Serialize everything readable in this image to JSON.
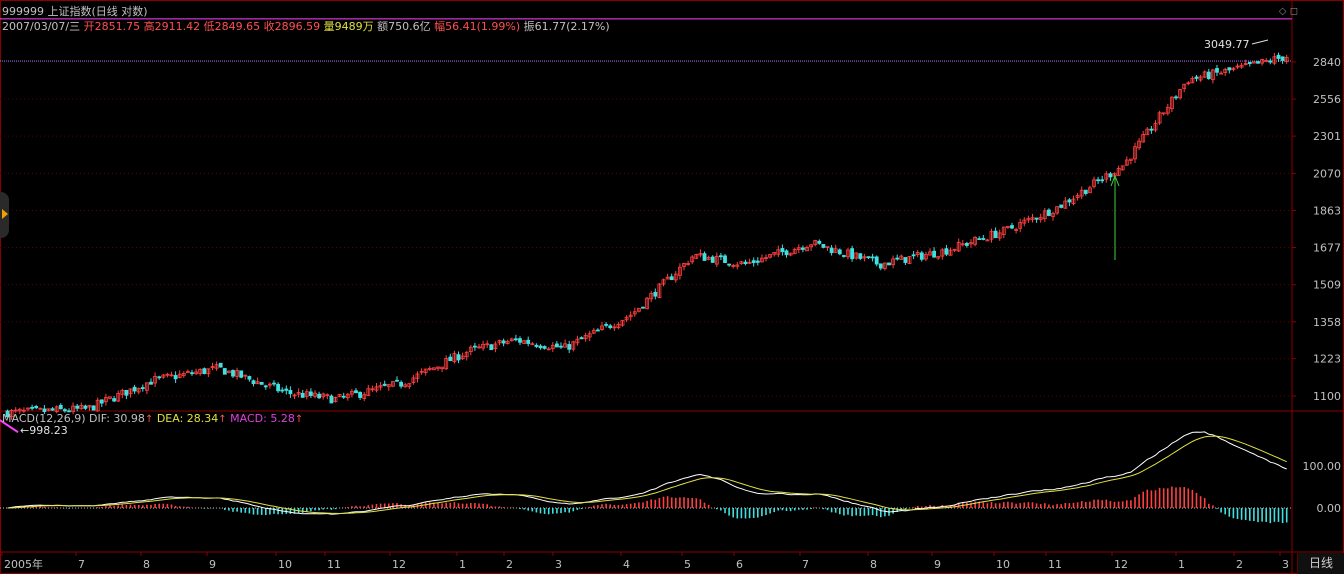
{
  "header": {
    "code": "999999",
    "name": "上证指数(日线 对数)",
    "date": "2007/03/07/三",
    "open_label": "开",
    "open": "2851.75",
    "high_label": "高",
    "high": "2911.42",
    "low_label": "低",
    "low": "2849.65",
    "close_label": "收",
    "close": "2896.59",
    "volume_label": "量",
    "volume": "9489万",
    "amount_label": "额",
    "amount": "750.6亿",
    "change_label": "幅",
    "change": "56.41(1.99%)",
    "amplitude_label": "振",
    "amplitude": "61.77(2.17%)"
  },
  "macd_header": {
    "name": "MACD(12,26,9)",
    "dif": "DIF: 30.98",
    "dea": "DEA: 28.34",
    "macd": "MACD: 5.28",
    "arrow": "↑"
  },
  "period_button": "日线",
  "colors": {
    "background": "#000000",
    "up": "#ff4040",
    "down": "#40e0e0",
    "dif": "#ffffff",
    "dea": "#e0e040",
    "macd_up": "#ff4040",
    "macd_down": "#40e0e0",
    "grid": "#8a0000",
    "price_line": "#ff40ff",
    "annotation_arrow": "#40d040"
  },
  "chart_data": [
    {
      "type": "candlestick",
      "scale": "log",
      "y_ticks": [
        2840,
        2556,
        2301,
        2070,
        1863,
        1677,
        1509,
        1358,
        1223,
        1100
      ],
      "x_ticks": [
        "2005年",
        "7",
        "8",
        "9",
        "10",
        "11",
        "12",
        "1",
        "2",
        "3",
        "4",
        "5",
        "6",
        "7",
        "8",
        "9",
        "10",
        "11",
        "12",
        "1",
        "2",
        "3"
      ],
      "annotations": [
        {
          "text": "←998.23",
          "label": "low",
          "value": 998.23
        },
        {
          "text": "3049.77",
          "label": "high",
          "value": 3049.77
        }
      ],
      "series_close_anchors": [
        {
          "x": "2005年",
          "value": 1050
        },
        {
          "x": "7",
          "value": 1060
        },
        {
          "x": "8",
          "value": 1150
        },
        {
          "x": "9",
          "value": 1190
        },
        {
          "x": "10",
          "value": 1110
        },
        {
          "x": "11",
          "value": 1090
        },
        {
          "x": "12",
          "value": 1140
        },
        {
          "x": "1",
          "value": 1250
        },
        {
          "x": "2",
          "value": 1290
        },
        {
          "x": "3",
          "value": 1260
        },
        {
          "x": "4",
          "value": 1390
        },
        {
          "x": "5",
          "value": 1640
        },
        {
          "x": "6",
          "value": 1600
        },
        {
          "x": "7",
          "value": 1700
        },
        {
          "x": "8",
          "value": 1600
        },
        {
          "x": "9",
          "value": 1660
        },
        {
          "x": "10",
          "value": 1760
        },
        {
          "x": "11",
          "value": 1880
        },
        {
          "x": "12",
          "value": 2120
        },
        {
          "x": "1",
          "value": 2700
        },
        {
          "x": "2",
          "value": 2800
        },
        {
          "x": "3",
          "value": 2896.59
        }
      ]
    },
    {
      "type": "macd",
      "y_ticks": [
        100.0,
        0.0
      ],
      "dif_last": 30.98,
      "dea_last": 28.34,
      "macd_last": 5.28
    }
  ]
}
